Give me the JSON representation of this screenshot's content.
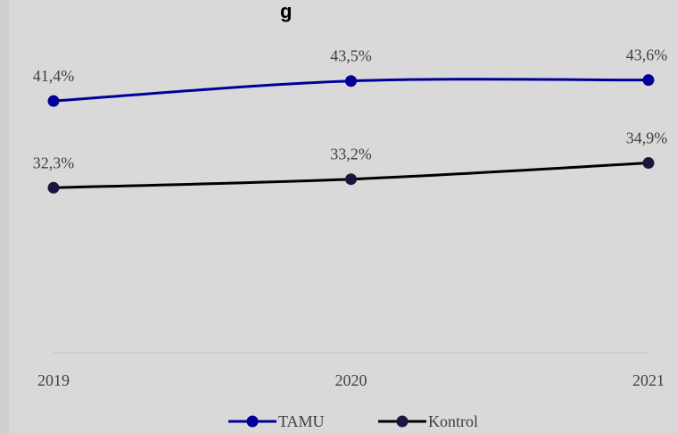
{
  "chart_data": {
    "type": "line",
    "title_fragment": "g",
    "categories": [
      "2019",
      "2020",
      "2021"
    ],
    "series": [
      {
        "name": "TAMU",
        "values": [
          41.4,
          43.5,
          43.6
        ],
        "labels": [
          "41,4%",
          "43,5%",
          "43,6%"
        ],
        "color": "#000099"
      },
      {
        "name": "Kontrol",
        "values": [
          32.3,
          33.2,
          34.9
        ],
        "labels": [
          "32,3%",
          "33,2%",
          "34,9%"
        ],
        "color": "#000000",
        "marker_color": "#1f1440"
      }
    ],
    "ylim": [
      15,
      52
    ],
    "grid": false,
    "legend": "bottom",
    "colors": {
      "background": "#d9d9d9",
      "axis": "#bfbfbf"
    }
  }
}
